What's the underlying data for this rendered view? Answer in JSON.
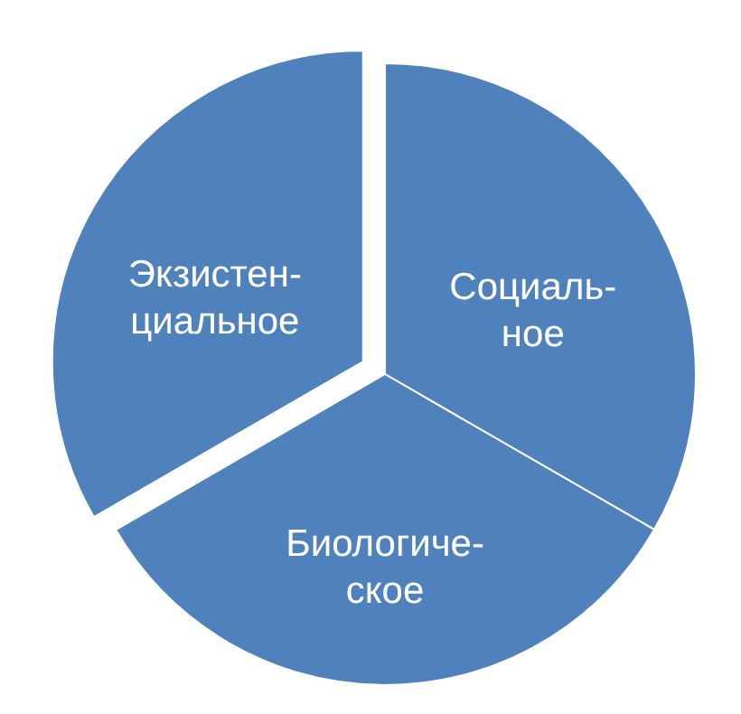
{
  "chart_data": {
    "type": "pie",
    "categories": [
      "Социаль-\nное",
      "Биологиче-\nское",
      "Экзистен-\nциальное"
    ],
    "values": [
      33.33,
      33.33,
      33.34
    ],
    "colors": [
      "#4f81bd",
      "#4f81bd",
      "#4f81bd"
    ]
  }
}
